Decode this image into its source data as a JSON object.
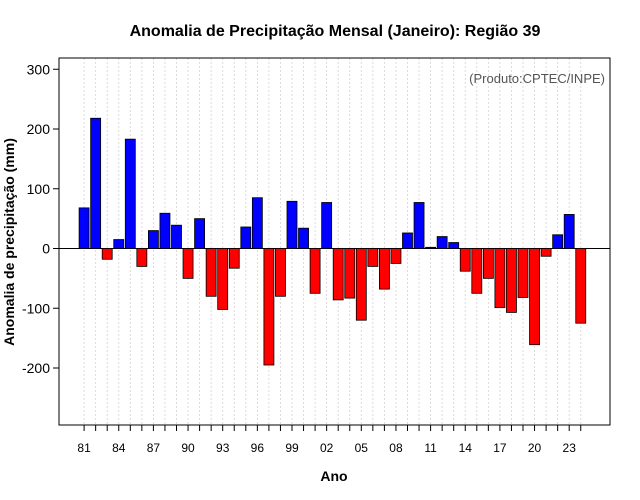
{
  "chart_data": {
    "type": "bar",
    "title": "Anomalia de Precipitação Mensal (Janeiro): Região 39",
    "xlabel": "Ano",
    "ylabel": "Anomalia de precipitação (mm)",
    "credit": "(Produto:CPTEC/INPE)",
    "ylim": [
      -300,
      320
    ],
    "yticks": [
      -200,
      -100,
      0,
      100,
      200,
      300
    ],
    "positive_color": "#0000ff",
    "negative_color": "#ff0000",
    "categories": [
      "81",
      "82",
      "83",
      "84",
      "85",
      "86",
      "87",
      "88",
      "89",
      "90",
      "91",
      "92",
      "93",
      "94",
      "95",
      "96",
      "97",
      "98",
      "99",
      "00",
      "01",
      "02",
      "03",
      "04",
      "05",
      "06",
      "07",
      "08",
      "09",
      "10",
      "11",
      "12",
      "13",
      "14",
      "15",
      "16",
      "17",
      "18",
      "19",
      "20",
      "21",
      "22",
      "23",
      "24"
    ],
    "x_tick_labels": [
      "81",
      "84",
      "87",
      "90",
      "93",
      "96",
      "99",
      "02",
      "05",
      "08",
      "11",
      "14",
      "17",
      "20",
      "23"
    ],
    "values": [
      68,
      218,
      -18,
      15,
      183,
      -30,
      30,
      59,
      39,
      -50,
      50,
      -80,
      -102,
      -33,
      36,
      85,
      -195,
      -80,
      79,
      34,
      -75,
      77,
      -86,
      -83,
      -120,
      -30,
      -68,
      -25,
      26,
      77,
      2,
      20,
      10,
      -38,
      -75,
      -50,
      -99,
      -107,
      -82,
      -161,
      -13,
      23,
      57,
      -125
    ]
  }
}
